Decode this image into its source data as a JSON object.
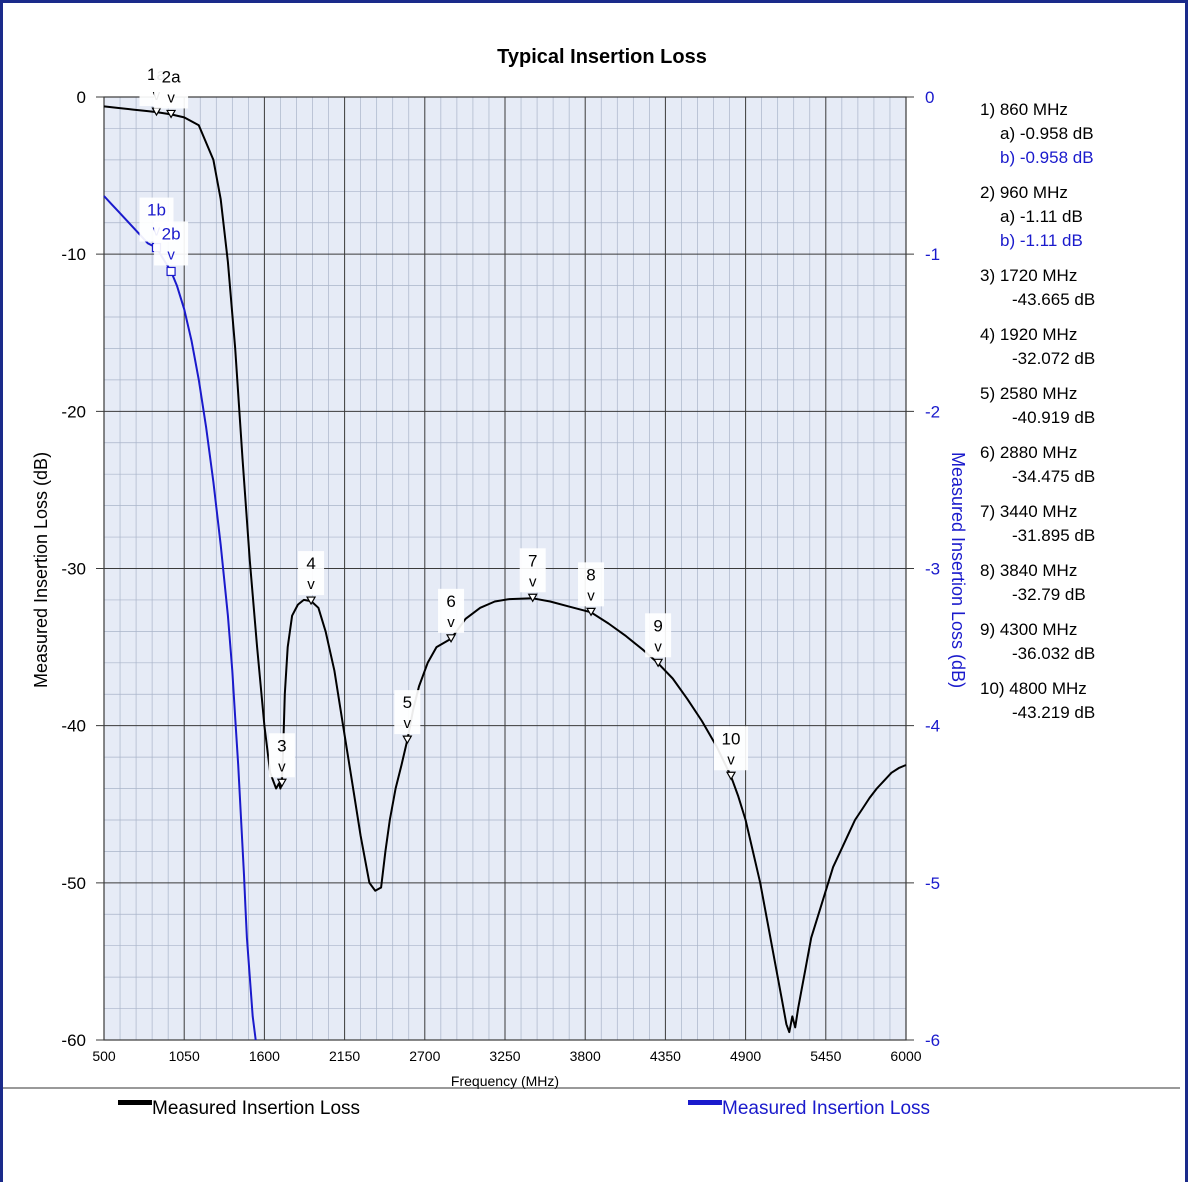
{
  "colors": {
    "series_a": "#000000",
    "series_b": "#1a1acc",
    "grid_major": "#3a3a3a",
    "grid_minor": "#a9b4c9",
    "plot_bg": "#e6ebf6",
    "frame": "#1a2a8a"
  },
  "chart_data": {
    "type": "line",
    "title": "Typical Insertion Loss",
    "xlabel": "Frequency (MHz)",
    "ylabel_left": "Measured Insertion Loss (dB)",
    "ylabel_right": "Measured Insertion Loss (dB)",
    "xlim": [
      500,
      6000
    ],
    "ylim_left": [
      -60,
      0
    ],
    "ylim_right": [
      -6,
      0
    ],
    "x_ticks": [
      "500",
      "1050",
      "1600",
      "2150",
      "2700",
      "3250",
      "3800",
      "4350",
      "4900",
      "5450",
      "6000"
    ],
    "y_ticks_left": [
      "0",
      "-10",
      "-20",
      "-30",
      "-40",
      "-50",
      "-60"
    ],
    "y_ticks_right": [
      "0",
      "-1",
      "-2",
      "-3",
      "-4",
      "-5",
      "-6"
    ],
    "grid": true,
    "series": [
      {
        "name": "Measured Insertion Loss",
        "axis": "left",
        "x": [
          500,
          600,
          700,
          800,
          860,
          960,
          1050,
          1150,
          1250,
          1300,
          1350,
          1400,
          1450,
          1500,
          1550,
          1600,
          1640,
          1680,
          1700,
          1710,
          1720,
          1730,
          1740,
          1760,
          1790,
          1830,
          1870,
          1920,
          1970,
          2020,
          2080,
          2140,
          2200,
          2260,
          2320,
          2360,
          2400,
          2430,
          2460,
          2500,
          2540,
          2580,
          2620,
          2660,
          2720,
          2780,
          2880,
          2980,
          3080,
          3180,
          3280,
          3440,
          3560,
          3680,
          3840,
          3960,
          4080,
          4200,
          4300,
          4400,
          4500,
          4600,
          4700,
          4800,
          4850,
          4900,
          4950,
          5000,
          5050,
          5100,
          5150,
          5180,
          5200,
          5220,
          5240,
          5260,
          5280,
          5310,
          5350,
          5400,
          5450,
          5500,
          5550,
          5600,
          5650,
          5700,
          5750,
          5800,
          5850,
          5900,
          5950,
          6000
        ],
        "y": [
          -0.6,
          -0.7,
          -0.8,
          -0.9,
          -0.958,
          -1.11,
          -1.3,
          -1.8,
          -4.0,
          -6.5,
          -10.5,
          -16.0,
          -23.0,
          -29.5,
          -35.0,
          -40.0,
          -43.0,
          -44.0,
          -43.665,
          -44.0,
          -43.665,
          -41.0,
          -38.0,
          -35.0,
          -33.0,
          -32.3,
          -32.0,
          -32.072,
          -32.5,
          -34.0,
          -36.5,
          -40.0,
          -43.5,
          -47.0,
          -50.0,
          -50.5,
          -50.3,
          -48.0,
          -46.0,
          -44.0,
          -42.5,
          -40.919,
          -39.0,
          -37.5,
          -36.0,
          -35.0,
          -34.475,
          -33.2,
          -32.5,
          -32.1,
          -31.95,
          -31.895,
          -32.1,
          -32.4,
          -32.79,
          -33.5,
          -34.3,
          -35.2,
          -36.032,
          -37.0,
          -38.3,
          -39.7,
          -41.3,
          -43.219,
          -44.5,
          -46.0,
          -48.0,
          -50.0,
          -52.5,
          -55.0,
          -57.5,
          -59.0,
          -59.5,
          -58.5,
          -59.2,
          -58.0,
          -57.0,
          -55.5,
          -53.5,
          -52.0,
          -50.5,
          -49.0,
          -48.0,
          -47.0,
          -46.0,
          -45.3,
          -44.6,
          -44.0,
          -43.5,
          -43.0,
          -42.7,
          -42.5
        ]
      },
      {
        "name": "Measured Insertion Loss",
        "axis": "right",
        "x": [
          500,
          550,
          600,
          650,
          700,
          750,
          800,
          830,
          860,
          900,
          960,
          1000,
          1050,
          1100,
          1150,
          1200,
          1250,
          1300,
          1350,
          1380,
          1400,
          1420,
          1440,
          1460,
          1470,
          1480,
          1500,
          1520,
          1540
        ],
        "y": [
          -0.63,
          -0.68,
          -0.73,
          -0.78,
          -0.83,
          -0.88,
          -0.93,
          -0.945,
          -0.958,
          -1.02,
          -1.11,
          -1.2,
          -1.35,
          -1.55,
          -1.8,
          -2.1,
          -2.45,
          -2.85,
          -3.3,
          -3.65,
          -3.95,
          -4.25,
          -4.6,
          -4.95,
          -5.15,
          -5.35,
          -5.6,
          -5.85,
          -6.0
        ]
      }
    ],
    "markers": [
      {
        "label": "1a",
        "series": 0,
        "x": 860,
        "y": -0.958
      },
      {
        "label": "2a",
        "series": 0,
        "x": 960,
        "y": -1.11
      },
      {
        "label": "1b",
        "series": 1,
        "x": 860,
        "y": -0.958
      },
      {
        "label": "2b",
        "series": 1,
        "x": 960,
        "y": -1.11
      },
      {
        "label": "3",
        "series": 0,
        "x": 1720,
        "y": -43.665
      },
      {
        "label": "4",
        "series": 0,
        "x": 1920,
        "y": -32.072
      },
      {
        "label": "5",
        "series": 0,
        "x": 2580,
        "y": -40.919
      },
      {
        "label": "6",
        "series": 0,
        "x": 2880,
        "y": -34.475
      },
      {
        "label": "7",
        "series": 0,
        "x": 3440,
        "y": -31.895
      },
      {
        "label": "8",
        "series": 0,
        "x": 3840,
        "y": -32.79
      },
      {
        "label": "9",
        "series": 0,
        "x": 4300,
        "y": -36.032
      },
      {
        "label": "10",
        "series": 0,
        "x": 4800,
        "y": -43.219
      }
    ],
    "marker_readout": [
      {
        "head": "1) 860 MHz",
        "lines": [
          {
            "text": "a) -0.958 dB",
            "series": 0
          },
          {
            "text": "b) -0.958 dB",
            "series": 1
          }
        ]
      },
      {
        "head": "2) 960 MHz",
        "lines": [
          {
            "text": "a) -1.11 dB",
            "series": 0
          },
          {
            "text": "b) -1.11 dB",
            "series": 1
          }
        ]
      },
      {
        "head": "3) 1720 MHz",
        "lines": [
          {
            "text": "-43.665 dB",
            "series": 0
          }
        ]
      },
      {
        "head": "4) 1920 MHz",
        "lines": [
          {
            "text": "-32.072 dB",
            "series": 0
          }
        ]
      },
      {
        "head": "5) 2580 MHz",
        "lines": [
          {
            "text": "-40.919 dB",
            "series": 0
          }
        ]
      },
      {
        "head": "6) 2880 MHz",
        "lines": [
          {
            "text": "-34.475 dB",
            "series": 0
          }
        ]
      },
      {
        "head": "7) 3440 MHz",
        "lines": [
          {
            "text": "-31.895 dB",
            "series": 0
          }
        ]
      },
      {
        "head": "8) 3840 MHz",
        "lines": [
          {
            "text": "-32.79 dB",
            "series": 0
          }
        ]
      },
      {
        "head": "9) 4300 MHz",
        "lines": [
          {
            "text": "-36.032 dB",
            "series": 0
          }
        ]
      },
      {
        "head": "10) 4800 MHz",
        "lines": [
          {
            "text": "-43.219 dB",
            "series": 0
          }
        ]
      }
    ],
    "legend": {
      "placement": "bottom",
      "items": [
        {
          "label": "Measured Insertion Loss",
          "series": 0
        },
        {
          "label": "Measured Insertion Loss",
          "series": 1
        }
      ]
    }
  }
}
